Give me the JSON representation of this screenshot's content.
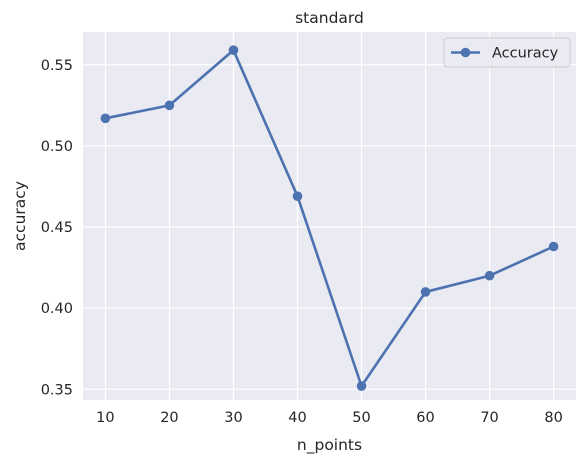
{
  "chart_data": {
    "type": "line",
    "title": "standard",
    "xlabel": "n_points",
    "ylabel": "accuracy",
    "x": [
      10,
      20,
      30,
      40,
      50,
      60,
      70,
      80
    ],
    "xticks": [
      10,
      20,
      30,
      40,
      50,
      60,
      70,
      80
    ],
    "xlim": [
      6.5,
      83.5
    ],
    "yticks": [
      0.35,
      0.4,
      0.45,
      0.5,
      0.55
    ],
    "ylim": [
      0.3434,
      0.5702
    ],
    "series": [
      {
        "name": "Accuracy",
        "values": [
          0.517,
          0.525,
          0.559,
          0.469,
          0.352,
          0.41,
          0.42,
          0.438
        ],
        "color": "#4c72b0",
        "marker": "circle"
      }
    ],
    "legend": "top-right",
    "grid": true,
    "background": "#eaeaf2"
  }
}
